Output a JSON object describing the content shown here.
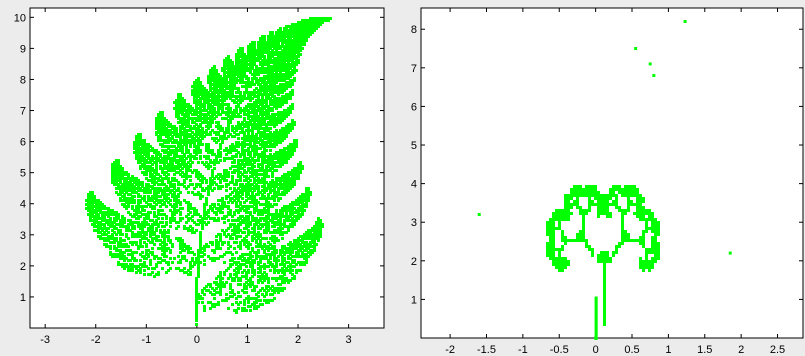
{
  "chart_data": [
    {
      "type": "scatter",
      "title": "",
      "xlabel": "",
      "ylabel": "",
      "xlim": [
        -3.3,
        3.7
      ],
      "ylim": [
        0,
        10.3
      ],
      "xticks": [
        -3,
        -2,
        -1,
        0,
        1,
        2,
        3
      ],
      "yticks": [
        1,
        2,
        3,
        4,
        5,
        6,
        7,
        8,
        9,
        10
      ],
      "grid": false,
      "marker_color": "#00ff00",
      "series": [
        {
          "description_points": "Barnsley fern fractal, points densely filling leaf shape",
          "x": [
            0,
            0.2,
            -0.5,
            0.6,
            -1.0,
            1.2,
            -1.8,
            1.8,
            2.6,
            2.4,
            -2.2,
            2.2,
            0.0
          ],
          "y": [
            0.3,
            2.0,
            4.5,
            5.0,
            6.5,
            7.2,
            4.3,
            3.3,
            10.0,
            9.6,
            4.2,
            9.0,
            0.0
          ]
        }
      ]
    },
    {
      "type": "scatter",
      "title": "",
      "xlabel": "",
      "ylabel": "",
      "xlim": [
        -2.4,
        2.85
      ],
      "ylim": [
        0,
        8.55
      ],
      "xticks": [
        -2,
        -1.5,
        -1,
        -0.5,
        0,
        0.5,
        1,
        1.5,
        2,
        2.5
      ],
      "yticks": [
        1,
        2,
        3,
        4,
        5,
        6,
        7,
        8
      ],
      "grid": false,
      "marker_color": "#00ff00",
      "series": [
        {
          "x": [
            1.23,
            0.55,
            0.75,
            0.8,
            0.0,
            -1.6,
            1.85
          ],
          "y": [
            8.2,
            7.5,
            7.1,
            6.8,
            0.0,
            3.2,
            2.2
          ]
        }
      ]
    }
  ],
  "left": {
    "xtick_labels": [
      "-3",
      "-2",
      "-1",
      "0",
      "1",
      "2",
      "3"
    ],
    "ytick_labels": [
      "1",
      "2",
      "3",
      "4",
      "5",
      "6",
      "7",
      "8",
      "9",
      "10"
    ]
  },
  "right": {
    "xtick_labels": [
      "-2",
      "-1.5",
      "-1",
      "-0.5",
      "0",
      "0.5",
      "1",
      "1.5",
      "2",
      "2.5"
    ],
    "ytick_labels": [
      "1",
      "2",
      "3",
      "4",
      "5",
      "6",
      "7",
      "8"
    ]
  }
}
